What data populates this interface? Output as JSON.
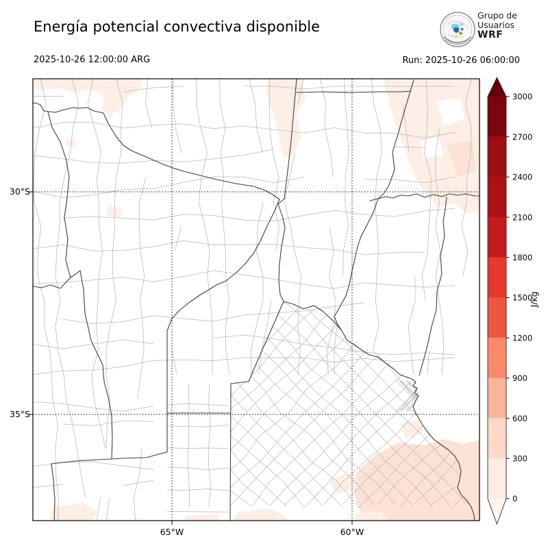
{
  "header": {
    "title": "Energía potencial convectiva disponible",
    "valid_time": "2025-10-26 12:00:00 ARG",
    "run_label": "Run: 2025-10-26 06:00:00",
    "logo": {
      "line1": "Grupo de",
      "line2": "Usuarios",
      "line3": "WRF"
    }
  },
  "map": {
    "x_tick_labels": [
      "65°W",
      "60°W"
    ],
    "y_tick_labels": [
      "30°S",
      "35°S"
    ]
  },
  "colorbar": {
    "units": "J/kg",
    "tick_labels": [
      "3000",
      "2700",
      "2400",
      "2100",
      "1800",
      "1500",
      "1200",
      "900",
      "600",
      "300",
      "0"
    ],
    "segments_top_to_bottom": [
      {
        "range": "2700-3000",
        "color": "#7c060f"
      },
      {
        "range": "2400-2700",
        "color": "#9d0d14"
      },
      {
        "range": "2100-2400",
        "color": "#ac1117"
      },
      {
        "range": "1800-2100",
        "color": "#c51b1d"
      },
      {
        "range": "1500-1800",
        "color": "#e6382b"
      },
      {
        "range": "1200-1500",
        "color": "#f05540"
      },
      {
        "range": "900-1200",
        "color": "#fb8a6a"
      },
      {
        "range": "600-900",
        "color": "#fbb59c"
      },
      {
        "range": "300-600",
        "color": "#fcd9c9"
      },
      {
        "range": "0-300",
        "color": "#fdece3"
      }
    ],
    "over_color": "#67000d",
    "under_color": "#fff5f0"
  },
  "chart_data": {
    "type": "heatmap",
    "title": "Energía potencial convectiva disponible",
    "units": "J/kg",
    "levels": [
      0,
      300,
      600,
      900,
      1200,
      1500,
      1800,
      2100,
      2400,
      2700,
      3000
    ],
    "colormap": "Reds",
    "legend_position": "right vertical colorbar with extend arrows",
    "gridlines": {
      "lons": [
        "65°W",
        "60°W"
      ],
      "lats": [
        "30°S",
        "35°S"
      ],
      "style": "dotted"
    },
    "field_summary": "CAPE mostly below 300 J/kg over central Argentina; patches of 300-600 J/kg along the north edge, the northeast corner and the southeast (coastal Buenos Aires) corner"
  },
  "colors": {
    "pink": "#fbe2d5",
    "pink_light": "#fdeee6",
    "dept_line": "#b6b6b6",
    "province_line": "#3c3c3c",
    "frame": "#000000"
  }
}
